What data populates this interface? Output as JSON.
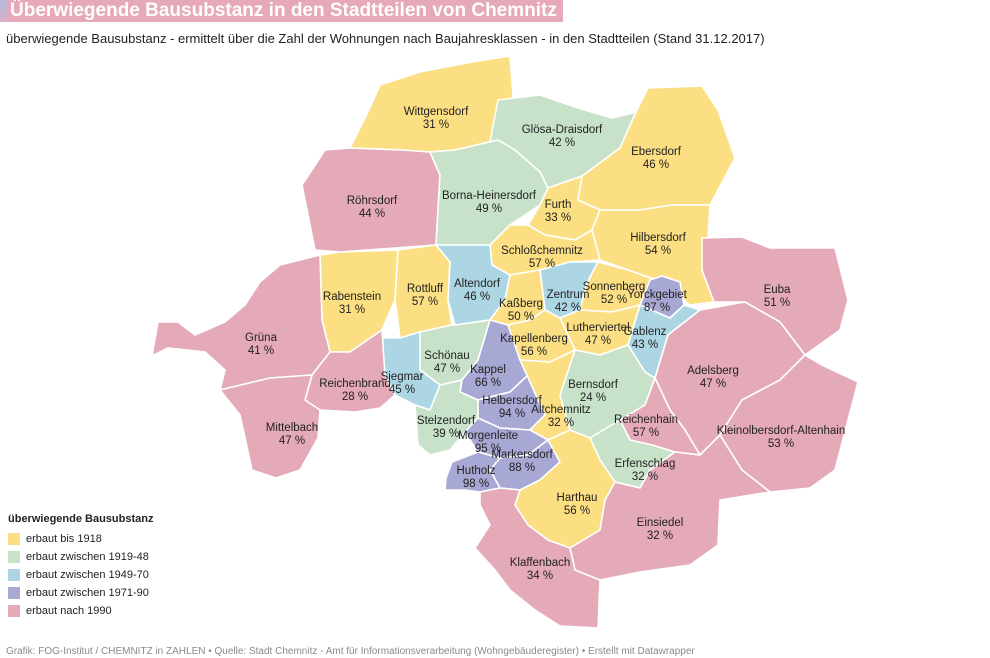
{
  "title": "Überwiegende Bausubstanz in den Stadtteilen von Chemnitz",
  "subtitle": "überwiegende Bausubstanz - ermittelt über die Zahl der Wohnungen nach Baujahresklassen - in den Stadtteilen (Stand 31.12.2017)",
  "colors": {
    "bis1918": "#fbdf82",
    "1919_48": "#c7e2c9",
    "1949_70": "#acd6e4",
    "1971_90": "#a8a8d4",
    "nach1990": "#e4aab8"
  },
  "legend": {
    "title": "überwiegende Bausubstanz",
    "items": [
      {
        "label": "erbaut bis 1918",
        "color": "#fbdf82"
      },
      {
        "label": "erbaut zwischen 1919-48",
        "color": "#c7e2c9"
      },
      {
        "label": "erbaut zwischen 1949-70",
        "color": "#acd6e4"
      },
      {
        "label": "erbaut zwischen 1971-90",
        "color": "#a8a8d4"
      },
      {
        "label": "erbaut nach 1990",
        "color": "#e4aab8"
      }
    ]
  },
  "districts": [
    {
      "name": "Wittgensdorf",
      "value": "31 %",
      "category": "bis1918"
    },
    {
      "name": "Glösa-Draisdorf",
      "value": "42 %",
      "category": "1919_48"
    },
    {
      "name": "Ebersdorf",
      "value": "46 %",
      "category": "bis1918"
    },
    {
      "name": "Röhrsdorf",
      "value": "44 %",
      "category": "nach1990"
    },
    {
      "name": "Borna-Heinersdorf",
      "value": "49 %",
      "category": "1919_48"
    },
    {
      "name": "Furth",
      "value": "33 %",
      "category": "bis1918"
    },
    {
      "name": "Hilbersdorf",
      "value": "54 %",
      "category": "bis1918"
    },
    {
      "name": "Schloßchemnitz",
      "value": "57 %",
      "category": "bis1918"
    },
    {
      "name": "Euba",
      "value": "51 %",
      "category": "nach1990"
    },
    {
      "name": "Rabenstein",
      "value": "31 %",
      "category": "bis1918"
    },
    {
      "name": "Rottluff",
      "value": "57 %",
      "category": "bis1918"
    },
    {
      "name": "Altendorf",
      "value": "46 %",
      "category": "1949_70"
    },
    {
      "name": "Zentrum",
      "value": "42 %",
      "category": "1949_70"
    },
    {
      "name": "Sonnenberg",
      "value": "52 %",
      "category": "bis1918"
    },
    {
      "name": "Yorckgebiet",
      "value": "87 %",
      "category": "1971_90"
    },
    {
      "name": "Kaßberg",
      "value": "50 %",
      "category": "bis1918"
    },
    {
      "name": "Grüna",
      "value": "41 %",
      "category": "nach1990"
    },
    {
      "name": "Lutherviertel",
      "value": "47 %",
      "category": "bis1918"
    },
    {
      "name": "Gablenz",
      "value": "43 %",
      "category": "1949_70"
    },
    {
      "name": "Kapellenberg",
      "value": "56 %",
      "category": "bis1918"
    },
    {
      "name": "Schönau",
      "value": "47 %",
      "category": "1919_48"
    },
    {
      "name": "Siegmar",
      "value": "45 %",
      "category": "1949_70"
    },
    {
      "name": "Kappel",
      "value": "66 %",
      "category": "1971_90"
    },
    {
      "name": "Adelsberg",
      "value": "47 %",
      "category": "nach1990"
    },
    {
      "name": "Reichenbrand",
      "value": "28 %",
      "category": "nach1990"
    },
    {
      "name": "Bernsdorf",
      "value": "24 %",
      "category": "1919_48"
    },
    {
      "name": "Helbersdorf",
      "value": "94 %",
      "category": "1971_90"
    },
    {
      "name": "Altchemnitz",
      "value": "32 %",
      "category": "bis1918"
    },
    {
      "name": "Mittelbach",
      "value": "47 %",
      "category": "nach1990"
    },
    {
      "name": "Stelzendorf",
      "value": "39 %",
      "category": "1919_48"
    },
    {
      "name": "Reichenhain",
      "value": "57 %",
      "category": "nach1990"
    },
    {
      "name": "Kleinolbersdorf-Altenhain",
      "value": "53 %",
      "category": "nach1990"
    },
    {
      "name": "Morgenleite",
      "value": "95 %",
      "category": "1971_90"
    },
    {
      "name": "Markersdorf",
      "value": "88 %",
      "category": "1971_90"
    },
    {
      "name": "Erfenschlag",
      "value": "32 %",
      "category": "1919_48"
    },
    {
      "name": "Hutholz",
      "value": "98 %",
      "category": "1971_90"
    },
    {
      "name": "Harthau",
      "value": "56 %",
      "category": "bis1918"
    },
    {
      "name": "Einsiedel",
      "value": "32 %",
      "category": "nach1990"
    },
    {
      "name": "Klaffenbach",
      "value": "34 %",
      "category": "nach1990"
    }
  ],
  "footer": "Grafik: FOG-Institut / CHEMNITZ in ZAHLEN • Quelle: Stadt Chemnitz - Amt für Informationsverarbeitung (Wohngebäuderegister) • Erstellt mit Datawrapper"
}
